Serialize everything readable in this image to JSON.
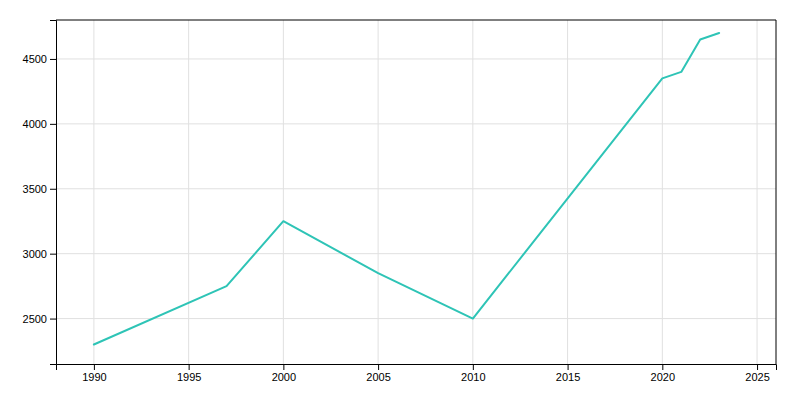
{
  "chart_data": {
    "type": "line",
    "x": [
      1990,
      1997,
      2000,
      2005,
      2010,
      2020,
      2021,
      2022,
      2023
    ],
    "values": [
      2300,
      2750,
      3250,
      2850,
      2500,
      4350,
      4400,
      4650,
      4700
    ],
    "color": "#2ec4b6",
    "xlim": [
      1988,
      2026
    ],
    "ylim": [
      2150,
      4800
    ],
    "xticks": [
      1990,
      1995,
      2000,
      2005,
      2010,
      2015,
      2020,
      2025
    ],
    "yticks": [
      2500,
      3000,
      3500,
      4000,
      4500
    ],
    "grid": true
  }
}
